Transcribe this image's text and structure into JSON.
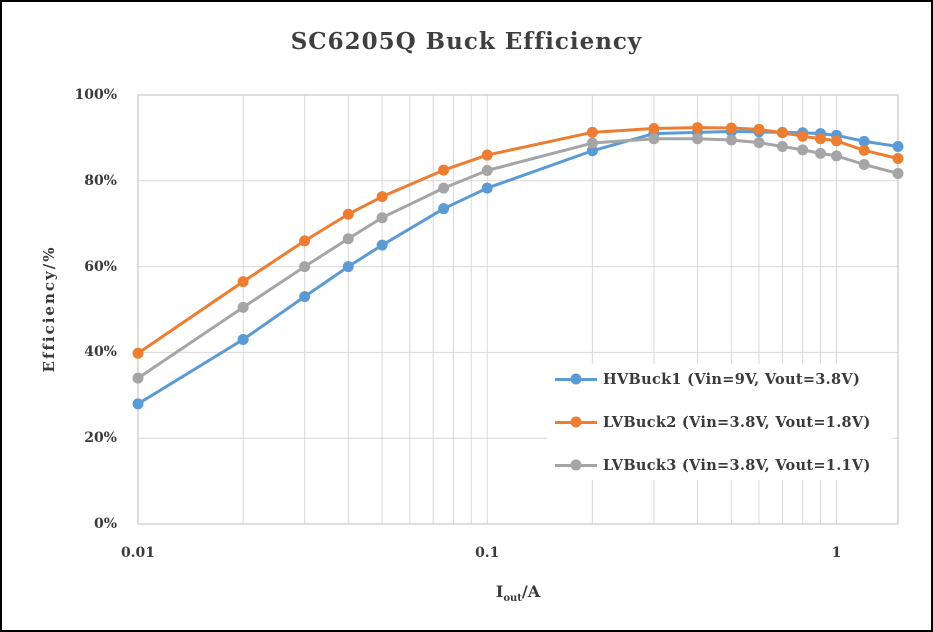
{
  "window": {
    "background": "#ffffff",
    "frame_border_color": "#000000"
  },
  "chart_data": {
    "type": "line",
    "title": "SC6205Q Buck Efficiency",
    "ylabel": "Efficiency/%",
    "xlabel": {
      "main": "I",
      "sub": "out",
      "unit": "/A"
    },
    "xscale": "log",
    "xlim": [
      0.01,
      1.5
    ],
    "ylim": [
      0,
      100
    ],
    "grid": true,
    "grid_color": "#d9d9d9",
    "plot_border_color": "#c9c9c9",
    "text_color": "#3a3a3a",
    "title_color": "#3f3f3f",
    "x_ticks": [
      {
        "value": 0.01,
        "label": "0.01"
      },
      {
        "value": 0.1,
        "label": "0.1"
      },
      {
        "value": 1,
        "label": "1"
      }
    ],
    "y_ticks": [
      {
        "value": 0,
        "label": "0%"
      },
      {
        "value": 20,
        "label": "20%"
      },
      {
        "value": 40,
        "label": "40%"
      },
      {
        "value": 60,
        "label": "60%"
      },
      {
        "value": 80,
        "label": "80%"
      },
      {
        "value": 100,
        "label": "100%"
      }
    ],
    "x_gridlines": [
      0.02,
      0.03,
      0.04,
      0.05,
      0.06,
      0.07,
      0.08,
      0.09,
      0.1,
      0.2,
      0.3,
      0.4,
      0.5,
      0.6,
      0.7,
      0.8,
      0.9,
      1
    ],
    "x": [
      0.01,
      0.02,
      0.03,
      0.04,
      0.05,
      0.075,
      0.1,
      0.2,
      0.3,
      0.4,
      0.5,
      0.6,
      0.7,
      0.8,
      0.9,
      1,
      1.2,
      1.5
    ],
    "series": [
      {
        "id": "hvbuck1",
        "name": "HVBuck1 (Vin=9V, Vout=3.8V)",
        "color": "#5b9bd5",
        "values": [
          28,
          43,
          53,
          60,
          65,
          73.5,
          78.3,
          87,
          91,
          91.3,
          91.5,
          91.4,
          91.3,
          91.2,
          91,
          90.6,
          89.2,
          88
        ]
      },
      {
        "id": "lvbuck2",
        "name": "LVBuck2 (Vin=3.8V, Vout=1.8V)",
        "color": "#ed7d31",
        "values": [
          39.8,
          56.5,
          66,
          72.2,
          76.3,
          82.5,
          86,
          91.3,
          92.2,
          92.4,
          92.3,
          92,
          91.2,
          90.4,
          89.8,
          89.3,
          87.1,
          85.2
        ]
      },
      {
        "id": "lvbuck3",
        "name": "LVBuck3 (Vin=3.8V, Vout=1.1V)",
        "color": "#a5a5a5",
        "values": [
          34,
          50.5,
          60,
          66.5,
          71.4,
          78.3,
          82.4,
          88.8,
          89.8,
          89.8,
          89.5,
          88.9,
          88,
          87.2,
          86.4,
          85.8,
          83.8,
          81.7
        ]
      }
    ],
    "legend_position": "inside-bottom-right"
  }
}
